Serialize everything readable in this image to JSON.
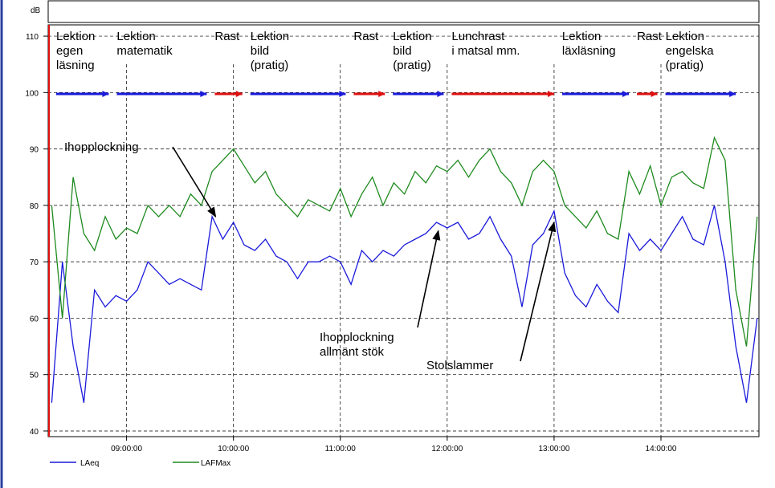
{
  "chart_data": {
    "type": "line",
    "y_label": "dB",
    "xlim": [
      "08:16:00",
      "14:55:00"
    ],
    "xticks": [
      "09:00:00",
      "10:00:00",
      "11:00:00",
      "12:00:00",
      "13:00:00",
      "14:00:00"
    ],
    "ylim": [
      39,
      112
    ],
    "yticks": [
      40,
      50,
      60,
      70,
      80,
      90,
      100,
      110
    ],
    "grid": true,
    "legend": "bottom-left",
    "x": [
      "08:18:00",
      "08:24:00",
      "08:30:00",
      "08:36:00",
      "08:42:00",
      "08:48:00",
      "08:54:00",
      "09:00:00",
      "09:06:00",
      "09:12:00",
      "09:18:00",
      "09:24:00",
      "09:30:00",
      "09:36:00",
      "09:42:00",
      "09:48:00",
      "09:54:00",
      "10:00:00",
      "10:06:00",
      "10:12:00",
      "10:18:00",
      "10:24:00",
      "10:30:00",
      "10:36:00",
      "10:42:00",
      "10:48:00",
      "10:54:00",
      "11:00:00",
      "11:06:00",
      "11:12:00",
      "11:18:00",
      "11:24:00",
      "11:30:00",
      "11:36:00",
      "11:42:00",
      "11:48:00",
      "11:54:00",
      "12:00:00",
      "12:06:00",
      "12:12:00",
      "12:18:00",
      "12:24:00",
      "12:30:00",
      "12:36:00",
      "12:42:00",
      "12:48:00",
      "12:54:00",
      "13:00:00",
      "13:06:00",
      "13:12:00",
      "13:18:00",
      "13:24:00",
      "13:30:00",
      "13:36:00",
      "13:42:00",
      "13:48:00",
      "13:54:00",
      "14:00:00",
      "14:06:00",
      "14:12:00",
      "14:18:00",
      "14:24:00",
      "14:30:00",
      "14:36:00",
      "14:42:00",
      "14:48:00",
      "14:54:00"
    ],
    "series": [
      {
        "name": "LAeq",
        "color": "#1a1adb",
        "values": [
          45,
          70,
          55,
          45,
          65,
          62,
          64,
          63,
          65,
          70,
          68,
          66,
          67,
          66,
          65,
          78,
          74,
          77,
          73,
          72,
          74,
          71,
          70,
          67,
          70,
          70,
          71,
          70,
          66,
          72,
          70,
          72,
          71,
          73,
          74,
          75,
          77,
          76,
          77,
          74,
          75,
          78,
          74,
          71,
          62,
          73,
          75,
          79,
          68,
          64,
          62,
          66,
          63,
          61,
          75,
          72,
          74,
          72,
          75,
          78,
          74,
          73,
          80,
          70,
          55,
          45,
          60
        ]
      },
      {
        "name": "LAFMax",
        "color": "#1e8a1e",
        "values": [
          80,
          60,
          85,
          75,
          72,
          78,
          74,
          76,
          75,
          80,
          78,
          80,
          78,
          82,
          80,
          86,
          88,
          90,
          87,
          84,
          86,
          82,
          80,
          78,
          81,
          80,
          79,
          83,
          78,
          82,
          85,
          80,
          84,
          82,
          86,
          84,
          87,
          86,
          88,
          85,
          88,
          90,
          86,
          84,
          80,
          86,
          88,
          86,
          80,
          78,
          76,
          79,
          75,
          74,
          86,
          82,
          87,
          80,
          85,
          86,
          84,
          83,
          92,
          88,
          65,
          55,
          78
        ]
      }
    ],
    "schedule": [
      {
        "label": "Lektion\negen\nläsning",
        "start": "08:16:00",
        "end": "08:50:00",
        "color": "#1a1adb"
      },
      {
        "label": "Lektion\nmatematik",
        "start": "08:50:00",
        "end": "09:45:00",
        "color": "#1a1adb"
      },
      {
        "label": "Rast",
        "start": "09:45:00",
        "end": "10:05:00",
        "color": "#e01010"
      },
      {
        "label": "Lektion\nbild\n(pratig)",
        "start": "10:05:00",
        "end": "11:03:00",
        "color": "#1a1adb"
      },
      {
        "label": "Rast",
        "start": "11:03:00",
        "end": "11:25:00",
        "color": "#e01010"
      },
      {
        "label": "Lektion\nbild\n(pratig)",
        "start": "11:25:00",
        "end": "11:58:00",
        "color": "#1a1adb"
      },
      {
        "label": "Lunchrast\ni matsal mm.",
        "start": "11:58:00",
        "end": "13:00:00",
        "color": "#e01010"
      },
      {
        "label": "Lektion\nläxläsning",
        "start": "13:00:00",
        "end": "13:42:00",
        "color": "#1a1adb"
      },
      {
        "label": "Rast",
        "start": "13:42:00",
        "end": "13:58:00",
        "color": "#e01010"
      },
      {
        "label": "Lektion\nengelska\n(pratig)",
        "start": "13:58:00",
        "end": "14:42:00",
        "color": "#1a1adb"
      }
    ],
    "annotations": [
      {
        "text": "Ihopplockning",
        "x": "09:50:00",
        "y": 78
      },
      {
        "text": "Ihopplockning\nallmänt stök",
        "x": "11:55:00",
        "y": 75.5
      },
      {
        "text": "Stolslammer",
        "x": "13:00:00",
        "y": 77
      }
    ]
  }
}
